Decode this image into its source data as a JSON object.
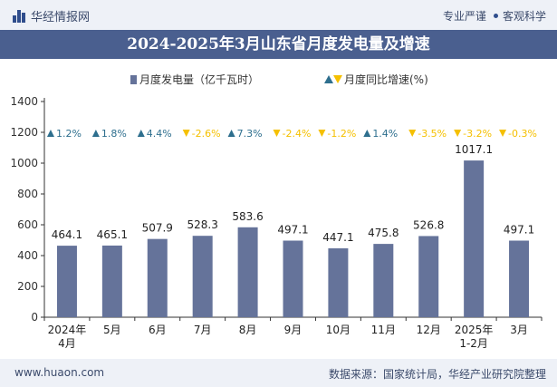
{
  "header": {
    "brand": "华经情报网",
    "tagline_1": "专业严谨",
    "tagline_2": "客观科学"
  },
  "footer": {
    "url": "www.huaon.com",
    "source": "数据来源：国家统计局，华经产业研究院整理"
  },
  "colors": {
    "bar": "#65739a",
    "up": "#2e6f8e",
    "down": "#f5c000",
    "axis": "#333333",
    "title_bg": "#4a5f8f"
  },
  "chart_data": {
    "type": "bar",
    "title": "2024-2025年3月山东省月度发电量及增速",
    "categories": [
      "2024年4月",
      "5月",
      "6月",
      "7月",
      "8月",
      "9月",
      "10月",
      "11月",
      "12月",
      "2025年1-2月",
      "3月"
    ],
    "series": [
      {
        "name": "月度发电量（亿千瓦时）",
        "values": [
          464.1,
          465.1,
          507.9,
          528.3,
          583.6,
          497.1,
          447.1,
          475.8,
          526.8,
          1017.1,
          497.1
        ]
      },
      {
        "name": "月度同比增速(%)",
        "values": [
          1.2,
          1.8,
          4.4,
          -2.6,
          7.3,
          -2.4,
          -1.2,
          1.4,
          -3.5,
          -3.2,
          -0.3
        ]
      }
    ],
    "bar_labels": [
      "464.1",
      "465.1",
      "507.9",
      "528.3",
      "583.6",
      "497.1",
      "447.1",
      "475.8",
      "526.8",
      "1017.1",
      "497.1"
    ],
    "growth_labels": [
      "1.2%",
      "1.8%",
      "4.4%",
      "-2.6%",
      "7.3%",
      "-2.4%",
      "-1.2%",
      "1.4%",
      "-3.5%",
      "-3.2%",
      "-0.3%"
    ],
    "ylim": [
      0,
      1400
    ],
    "yticks": [
      "0",
      "200",
      "400",
      "600",
      "800",
      "1000",
      "1200",
      "1400"
    ],
    "legend_position": "top-center",
    "grid": false
  }
}
